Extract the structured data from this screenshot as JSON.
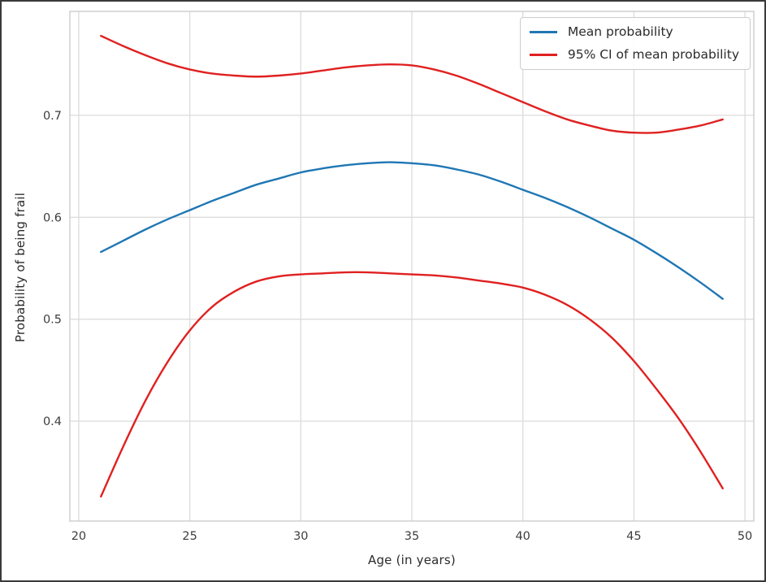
{
  "figure": {
    "background": "#ffffff",
    "border_color": "#3a3a3a"
  },
  "axes": {
    "tick_label_color": "#3d3d3d",
    "grid_color": "#dcdcdc",
    "spine_color": "#cccccc"
  },
  "legend": {
    "position": "upper-right",
    "items": [
      {
        "label": "Mean probability",
        "color": "#1f77b4"
      },
      {
        "label": "95% CI of mean probability",
        "color": "#e02020"
      }
    ]
  },
  "chart_data": {
    "type": "line",
    "title": "",
    "xlabel": "Age (in years)",
    "ylabel": "Probability of being frail",
    "xlim": [
      19.6,
      50.4
    ],
    "ylim": [
      0.302,
      0.802
    ],
    "xticks": [
      20,
      25,
      30,
      35,
      40,
      45,
      50
    ],
    "yticks": [
      0.4,
      0.5,
      0.6,
      0.7
    ],
    "grid": true,
    "legend_position": "upper right",
    "x": [
      21,
      22,
      23,
      24,
      25,
      26,
      27,
      28,
      29,
      30,
      31,
      32,
      33,
      34,
      35,
      36,
      37,
      38,
      39,
      40,
      41,
      42,
      43,
      44,
      45,
      46,
      47,
      48,
      49
    ],
    "series": [
      {
        "name": "Mean probability",
        "color": "#1f77b4",
        "values": [
          0.566,
          0.577,
          0.588,
          0.598,
          0.607,
          0.616,
          0.624,
          0.632,
          0.638,
          0.644,
          0.648,
          0.651,
          0.653,
          0.654,
          0.653,
          0.651,
          0.647,
          0.642,
          0.635,
          0.627,
          0.619,
          0.61,
          0.6,
          0.589,
          0.578,
          0.565,
          0.551,
          0.536,
          0.52
        ]
      },
      {
        "name": "95% CI upper bound",
        "color": "#e02020",
        "values": [
          0.778,
          0.768,
          0.759,
          0.751,
          0.745,
          0.741,
          0.739,
          0.738,
          0.739,
          0.741,
          0.744,
          0.747,
          0.749,
          0.75,
          0.749,
          0.745,
          0.739,
          0.731,
          0.722,
          0.713,
          0.704,
          0.696,
          0.69,
          0.685,
          0.683,
          0.683,
          0.686,
          0.69,
          0.696
        ]
      },
      {
        "name": "95% CI lower bound",
        "color": "#e02020",
        "values": [
          0.326,
          0.375,
          0.42,
          0.458,
          0.489,
          0.512,
          0.527,
          0.537,
          0.542,
          0.544,
          0.545,
          0.546,
          0.546,
          0.545,
          0.544,
          0.543,
          0.541,
          0.538,
          0.535,
          0.531,
          0.524,
          0.514,
          0.5,
          0.482,
          0.459,
          0.432,
          0.403,
          0.37,
          0.334
        ]
      }
    ]
  }
}
